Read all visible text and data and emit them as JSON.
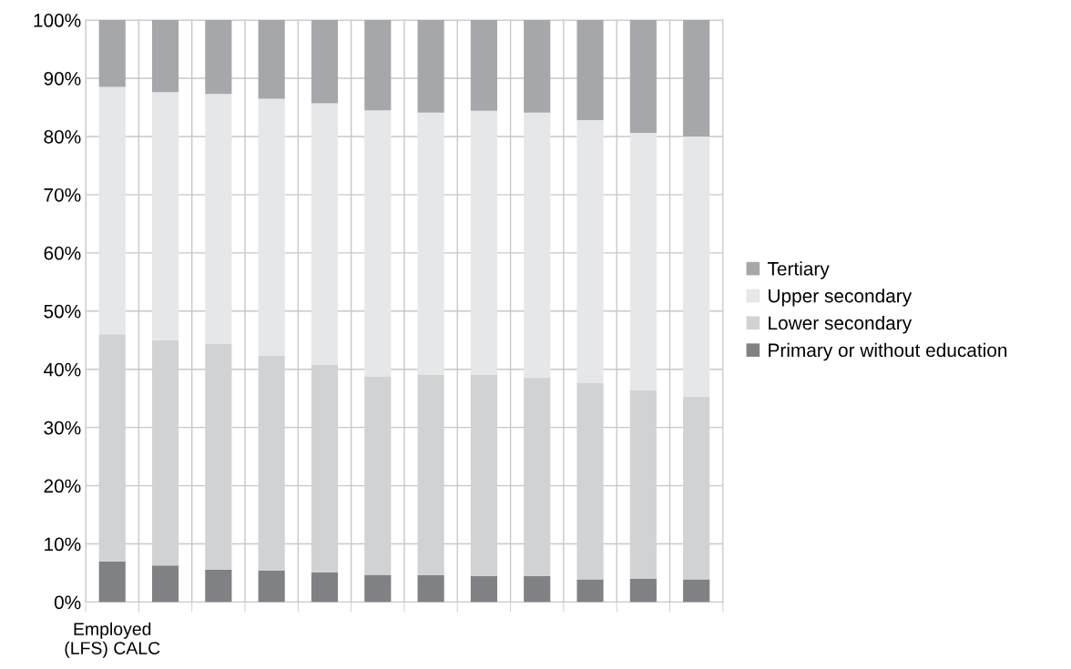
{
  "chart_data": {
    "type": "bar",
    "stacked": true,
    "categories": [
      "Employed\n(LFS) CALC",
      null,
      null,
      null,
      null,
      null,
      null,
      null,
      null,
      null,
      null,
      null
    ],
    "series": [
      {
        "name": "Primary or without education",
        "color": "#808184",
        "values": [
          7,
          6.3,
          5.6,
          5.4,
          5.1,
          4.7,
          4.6,
          4.5,
          4.5,
          3.9,
          4.0,
          3.9
        ]
      },
      {
        "name": "Lower secondary",
        "color": "#d1d2d4",
        "values": [
          39,
          38.7,
          38.8,
          36.9,
          35.7,
          34.0,
          34.5,
          34.6,
          34.1,
          33.7,
          32.4,
          31.4
        ]
      },
      {
        "name": "Upper secondary",
        "color": "#e6e7e8",
        "values": [
          42.5,
          42.6,
          42.9,
          44.2,
          44.9,
          45.8,
          45.0,
          45.3,
          45.5,
          45.2,
          44.2,
          44.7
        ]
      },
      {
        "name": "Tertiary",
        "color": "#a6a7aa",
        "values": [
          11.5,
          12.4,
          12.7,
          13.5,
          14.3,
          15.5,
          15.9,
          15.6,
          15.9,
          17.2,
          19.4,
          20.0
        ]
      }
    ],
    "ylim": [
      0,
      100
    ],
    "yticks": [
      {
        "value": 0,
        "label": "0%"
      },
      {
        "value": 10,
        "label": "10%"
      },
      {
        "value": 20,
        "label": "20%"
      },
      {
        "value": 30,
        "label": "30%"
      },
      {
        "value": 40,
        "label": "40%"
      },
      {
        "value": 50,
        "label": "50%"
      },
      {
        "value": 60,
        "label": "60%"
      },
      {
        "value": 70,
        "label": "70%"
      },
      {
        "value": 80,
        "label": "80%"
      },
      {
        "value": 90,
        "label": "90%"
      },
      {
        "value": 100,
        "label": "100%"
      }
    ],
    "grid": true,
    "legend": "right"
  }
}
